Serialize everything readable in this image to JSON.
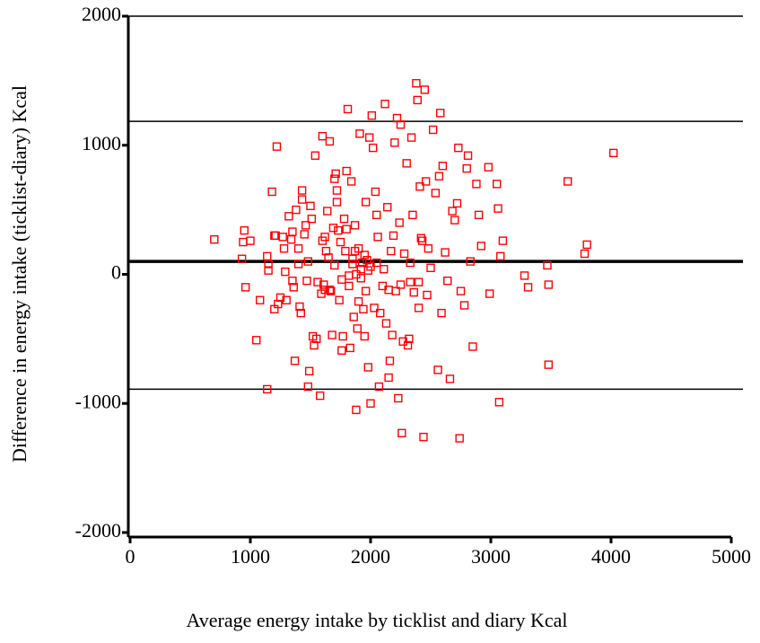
{
  "chart_data": {
    "type": "scatter",
    "x_label": "Average energy intake by ticklist and diary Kcal",
    "y_label": "Difference in energy intake (ticklist-diary) Kcal",
    "xlim": [
      -15,
      5097
    ],
    "ylim": [
      -2035,
      2000
    ],
    "xticks": [
      0,
      1000,
      2000,
      3000,
      4000,
      5000
    ],
    "yticks": [
      2000,
      1000,
      0,
      -1000,
      -2000
    ],
    "color": "#ff0000",
    "reference_lines": [
      {
        "value": 1185,
        "width": 1.5
      },
      {
        "value": 100,
        "width": 3.5
      },
      {
        "value": -890,
        "width": 1.5
      }
    ],
    "x": [
      700,
      950,
      940,
      1000,
      930,
      960,
      1050,
      1080,
      1140,
      1150,
      1150,
      1140,
      1180,
      1200,
      1210,
      1220,
      1200,
      1230,
      1250,
      1270,
      1280,
      1290,
      1300,
      1320,
      1340,
      1350,
      1350,
      1360,
      1370,
      1380,
      1400,
      1410,
      1420,
      1430,
      1430,
      1450,
      1460,
      1470,
      1480,
      1490,
      1500,
      1510,
      1520,
      1530,
      1540,
      1550,
      1580,
      1590,
      1600,
      1600,
      1610,
      1620,
      1630,
      1640,
      1650,
      1660,
      1670,
      1680,
      1690,
      1700,
      1710,
      1720,
      1730,
      1740,
      1750,
      1760,
      1770,
      1780,
      1790,
      1800,
      1810,
      1820,
      1830,
      1840,
      1850,
      1860,
      1870,
      1880,
      1890,
      1900,
      1910,
      1920,
      1930,
      1940,
      1950,
      1960,
      1970,
      1980,
      1990,
      2000,
      2010,
      2020,
      2030,
      2040,
      2050,
      2060,
      2070,
      2080,
      2100,
      2110,
      2120,
      2130,
      2140,
      2150,
      2160,
      2170,
      2180,
      2190,
      2200,
      2210,
      2220,
      2230,
      2240,
      2250,
      2260,
      2270,
      2280,
      2300,
      2310,
      2320,
      2330,
      2340,
      2350,
      2360,
      2380,
      2390,
      2400,
      2410,
      2420,
      2430,
      2440,
      2450,
      2460,
      2470,
      2480,
      2500,
      2520,
      2540,
      2560,
      2570,
      2580,
      2590,
      2600,
      2620,
      2640,
      2660,
      2680,
      2700,
      2720,
      2730,
      2740,
      2750,
      2780,
      2800,
      2810,
      2830,
      2850,
      2880,
      2900,
      2920,
      2980,
      2990,
      3050,
      3060,
      3070,
      3080,
      3100,
      3280,
      3310,
      3470,
      3480,
      3480,
      3640,
      3780,
      3800,
      4020,
      1850,
      1900,
      1950,
      2000,
      1880,
      1920,
      1980,
      2050,
      1820,
      1760,
      1700,
      1660,
      2150,
      2250,
      2330,
      2400,
      1960,
      1800,
      1870,
      1720,
      1620,
      1560,
      1480,
      1400
    ],
    "y": [
      270,
      340,
      250,
      260,
      120,
      -100,
      -510,
      -200,
      -890,
      30,
      80,
      140,
      640,
      300,
      300,
      990,
      -270,
      -230,
      -180,
      290,
      200,
      20,
      -200,
      450,
      270,
      330,
      -50,
      -100,
      -670,
      500,
      200,
      -250,
      -300,
      650,
      580,
      310,
      380,
      -50,
      -870,
      -750,
      530,
      430,
      -480,
      -550,
      920,
      -500,
      -940,
      -150,
      1070,
      260,
      -80,
      -120,
      180,
      490,
      130,
      1030,
      -130,
      -470,
      360,
      740,
      780,
      650,
      340,
      -200,
      250,
      -590,
      -480,
      430,
      180,
      800,
      1280,
      -10,
      -570,
      720,
      80,
      -330,
      180,
      -1050,
      -420,
      -210,
      1090,
      40,
      90,
      -270,
      -480,
      560,
      110,
      -720,
      1060,
      -1000,
      1230,
      980,
      -260,
      640,
      460,
      290,
      -870,
      -300,
      -90,
      40,
      1320,
      -380,
      520,
      -800,
      -670,
      180,
      -470,
      300,
      1020,
      -130,
      1210,
      -960,
      400,
      1160,
      -1230,
      -520,
      160,
      860,
      -550,
      -500,
      90,
      1060,
      460,
      -140,
      1480,
      1350,
      -260,
      680,
      280,
      260,
      -1260,
      1430,
      720,
      -160,
      200,
      50,
      1120,
      630,
      -740,
      760,
      1250,
      -300,
      840,
      170,
      -50,
      -810,
      490,
      420,
      550,
      980,
      -1270,
      -130,
      -240,
      820,
      920,
      100,
      -560,
      700,
      460,
      220,
      830,
      -150,
      700,
      510,
      -990,
      140,
      260,
      -10,
      -100,
      70,
      -80,
      -700,
      720,
      160,
      230,
      940,
      120,
      200,
      150,
      60,
      0,
      -30,
      30,
      90,
      -90,
      -40,
      70,
      -120,
      -120,
      -80,
      -60,
      -60,
      -130,
      350,
      380,
      560,
      290,
      -60,
      100,
      80
    ]
  }
}
